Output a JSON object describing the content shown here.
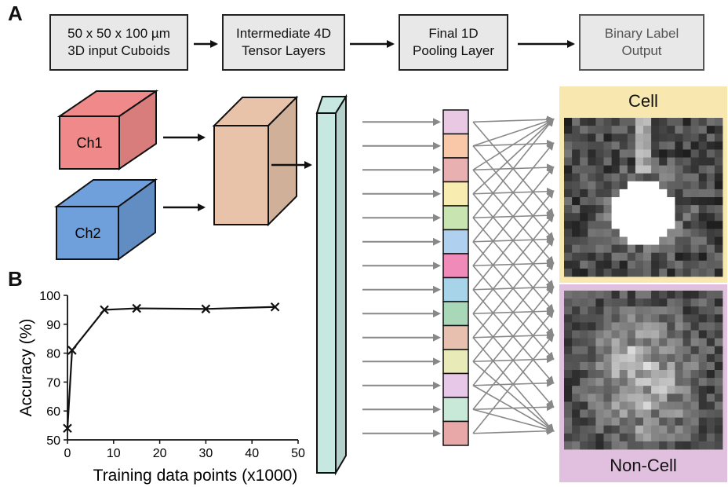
{
  "panel_a_label": "A",
  "panel_b_label": "B",
  "pipeline": {
    "stages": [
      {
        "label": "50 x 50 x 100 µm\n3D input Cuboids"
      },
      {
        "label": "Intermediate 4D\nTensor Layers"
      },
      {
        "label": "Final 1D\nPooling Layer"
      },
      {
        "label": "Binary Label\nOutput"
      }
    ]
  },
  "inputs": {
    "ch1_label": "Ch1",
    "ch2_label": "Ch2",
    "ch1_color": "#f08a8a",
    "ch2_color": "#6fa0dc"
  },
  "intermediate_color": "#e8c3aa",
  "pooling_column_color": "#c7e8e0",
  "pooling_units": [
    "#e8c8e2",
    "#f8c8a8",
    "#e8b0b0",
    "#f8ecb0",
    "#c8e4b0",
    "#b0d0f0",
    "#f08ab8",
    "#a8d4ea",
    "#a8d8b8",
    "#e8c0b0",
    "#e8eab8",
    "#e8c8e8",
    "#c8e8d8",
    "#e8a8a8"
  ],
  "outputs": {
    "cell": {
      "label": "Cell",
      "bg": "#f8e8b0"
    },
    "non_cell": {
      "label": "Non-Cell",
      "bg": "#e0c0de"
    }
  },
  "chart_data": {
    "type": "line",
    "xlabel": "Training data points (x1000)",
    "ylabel": "Accuracy (%)",
    "x": [
      0,
      1,
      8,
      15,
      30,
      45
    ],
    "y": [
      54,
      81,
      95,
      95.5,
      95.3,
      96
    ],
    "xlim": [
      0,
      50
    ],
    "ylim": [
      50,
      100
    ],
    "xticks": [
      0,
      10,
      20,
      30,
      40,
      50
    ],
    "yticks": [
      50,
      60,
      70,
      80,
      90,
      100
    ],
    "marker": "x",
    "grid": false
  }
}
